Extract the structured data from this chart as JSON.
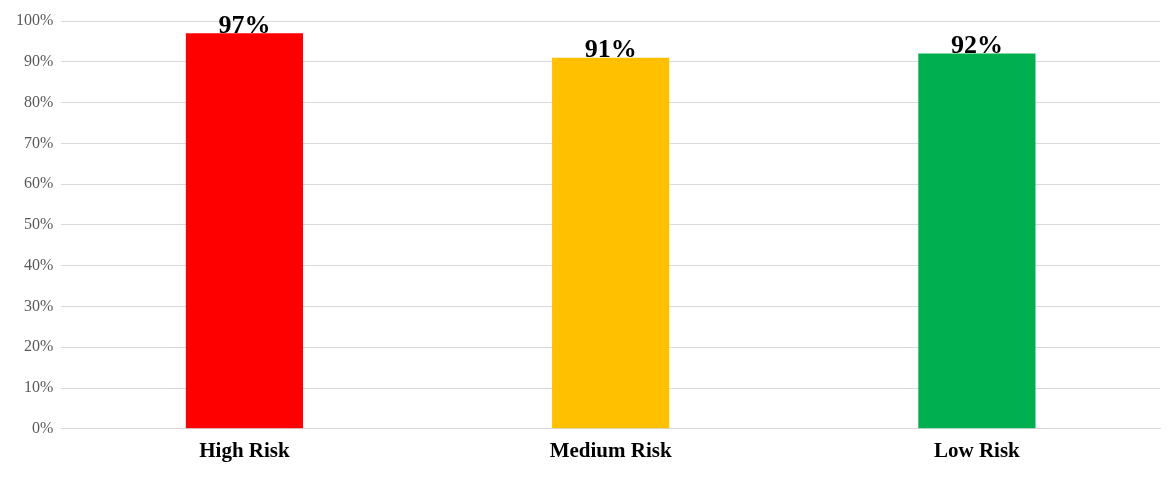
{
  "chart_data": {
    "type": "bar",
    "categories": [
      "High Risk",
      "Medium Risk",
      "Low Risk"
    ],
    "values": [
      97,
      91,
      92
    ],
    "colors": [
      "#ff0000",
      "#ffc000",
      "#00b050"
    ],
    "value_labels": [
      "97%",
      "91%",
      "92%"
    ],
    "ylim": [
      0,
      100
    ],
    "yticks": [
      {
        "value": 0,
        "label": "0%"
      },
      {
        "value": 10,
        "label": "10%"
      },
      {
        "value": 20,
        "label": "20%"
      },
      {
        "value": 30,
        "label": "30%"
      },
      {
        "value": 40,
        "label": "40%"
      },
      {
        "value": 50,
        "label": "50%"
      },
      {
        "value": 60,
        "label": "60%"
      },
      {
        "value": 70,
        "label": "70%"
      },
      {
        "value": 80,
        "label": "80%"
      },
      {
        "value": 90,
        "label": "90%"
      },
      {
        "value": 100,
        "label": "100%"
      }
    ],
    "grid": "y",
    "legend": false
  }
}
